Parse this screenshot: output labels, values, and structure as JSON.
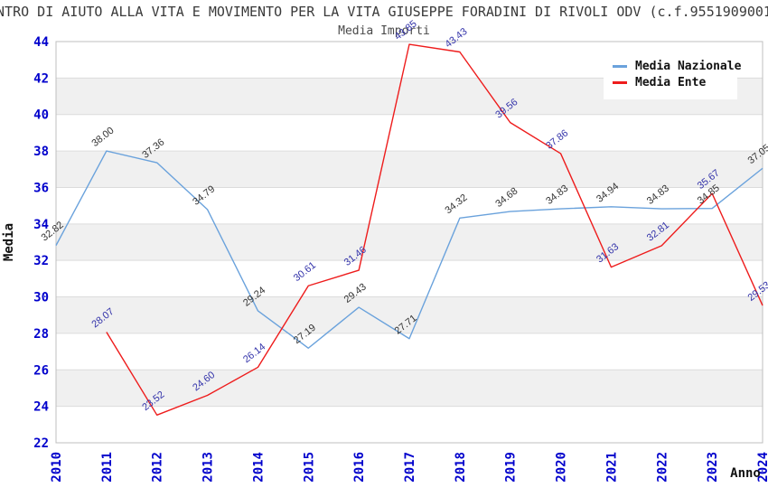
{
  "title": "NTRO DI AIUTO ALLA VITA E MOVIMENTO PER LA VITA GIUSEPPE FORADINI DI RIVOLI ODV (c.f.9551909001",
  "subtitle": "Media Importi",
  "axes": {
    "y_title": "Media",
    "x_title": "Anno"
  },
  "legend": {
    "items": [
      {
        "label": "Media Nazionale",
        "color": "#6AA2DC"
      },
      {
        "label": "Media Ente",
        "color": "#EE1C1C"
      }
    ]
  },
  "colors": {
    "tick_label": "#0000CC",
    "band_gray": "#F0F0F0",
    "gridline": "#DCDCDC",
    "plot_border": "#BFBFBF",
    "nazionale_line": "#6AA2DC",
    "nazionale_point_label": "#333333",
    "ente_line": "#EE1C1C",
    "ente_point_label": "#3333AA"
  },
  "chart_data": {
    "type": "line",
    "title": "Media Importi",
    "xlabel": "Anno",
    "ylabel": "Media",
    "x": [
      2010,
      2011,
      2012,
      2013,
      2014,
      2015,
      2016,
      2017,
      2018,
      2019,
      2020,
      2021,
      2022,
      2023,
      2024
    ],
    "series": [
      {
        "name": "Media Nazionale",
        "color": "#6AA2DC",
        "label_color": "#333333",
        "values": [
          32.82,
          38.0,
          37.36,
          34.79,
          29.24,
          27.19,
          29.43,
          27.71,
          34.32,
          34.68,
          34.83,
          34.94,
          34.83,
          34.85,
          37.05
        ]
      },
      {
        "name": "Media Ente",
        "color": "#EE1C1C",
        "label_color": "#3333AA",
        "values": [
          null,
          28.07,
          23.52,
          24.6,
          26.14,
          30.61,
          31.46,
          43.85,
          43.43,
          39.56,
          37.86,
          31.63,
          32.81,
          35.67,
          29.53
        ]
      }
    ],
    "ylim": [
      22,
      44
    ],
    "y_ticks": [
      22,
      24,
      26,
      28,
      30,
      32,
      34,
      36,
      38,
      40,
      42,
      44
    ],
    "grid": true,
    "banded_background": true,
    "legend_position": "top-right"
  }
}
